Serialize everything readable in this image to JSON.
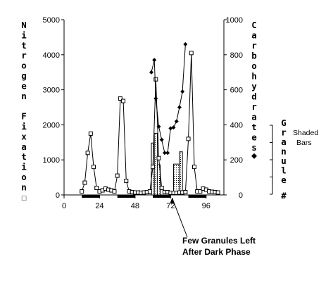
{
  "chart_data": {
    "type": "line",
    "left_axis": {
      "title": "Nitrogen Fixation",
      "marker_symbol": "□",
      "ylim": [
        0,
        5000
      ],
      "ticks": [
        "0",
        "1000",
        "2000",
        "3000",
        "4000",
        "5000"
      ]
    },
    "right_axis": {
      "title": "Carbohydrates",
      "marker_symbol": "◆",
      "ylim": [
        0,
        1000
      ],
      "ticks": [
        "0",
        "200",
        "400",
        "600",
        "800",
        "1000"
      ]
    },
    "x_axis": {
      "xlim": [
        0,
        108
      ],
      "ticks": [
        "0",
        "24",
        "48",
        "72",
        "96"
      ]
    },
    "granule_axis": {
      "title": "Granule #",
      "note": "Shaded Bars"
    },
    "annotation": {
      "line1": "Few Granules Left",
      "line2": "After Dark Phase",
      "x": 73
    },
    "series": [
      {
        "name": "Nitrogen Fixation",
        "axis": "left",
        "marker": "open-square",
        "points": [
          [
            12,
            100
          ],
          [
            14,
            350
          ],
          [
            16,
            1200
          ],
          [
            18,
            1750
          ],
          [
            20,
            800
          ],
          [
            22,
            200
          ],
          [
            24,
            100
          ],
          [
            26,
            130
          ],
          [
            28,
            180
          ],
          [
            30,
            150
          ],
          [
            32,
            130
          ],
          [
            34,
            100
          ],
          [
            36,
            550
          ],
          [
            38,
            2750
          ],
          [
            40,
            2680
          ],
          [
            42,
            400
          ],
          [
            44,
            100
          ],
          [
            46,
            80
          ],
          [
            48,
            70
          ],
          [
            50,
            70
          ],
          [
            52,
            60
          ],
          [
            54,
            70
          ],
          [
            56,
            80
          ],
          [
            58,
            100
          ],
          [
            60,
            800
          ],
          [
            62,
            3300
          ],
          [
            64,
            1050
          ],
          [
            66,
            200
          ],
          [
            68,
            80
          ],
          [
            70,
            80
          ],
          [
            72,
            60
          ],
          [
            74,
            60
          ],
          [
            76,
            60
          ],
          [
            78,
            70
          ],
          [
            80,
            70
          ],
          [
            82,
            80
          ],
          [
            84,
            1600
          ],
          [
            86,
            4050
          ],
          [
            88,
            800
          ],
          [
            90,
            100
          ],
          [
            92,
            100
          ],
          [
            94,
            180
          ],
          [
            96,
            150
          ],
          [
            98,
            100
          ],
          [
            100,
            90
          ],
          [
            102,
            80
          ],
          [
            104,
            70
          ]
        ]
      },
      {
        "name": "Carbohydrates",
        "axis": "right",
        "marker": "filled-diamond",
        "points": [
          [
            59,
            700
          ],
          [
            61,
            770
          ],
          [
            62,
            550
          ],
          [
            64,
            390
          ],
          [
            66,
            315
          ],
          [
            68,
            240
          ],
          [
            70,
            240
          ],
          [
            72,
            380
          ],
          [
            74,
            385
          ],
          [
            76,
            420
          ],
          [
            78,
            500
          ],
          [
            80,
            590
          ],
          [
            82,
            860
          ]
        ]
      }
    ],
    "granule_bars": [
      {
        "x0": 59,
        "x1": 61,
        "value": 1480
      },
      {
        "x0": 61,
        "x1": 63,
        "value": 1760
      },
      {
        "x0": 63,
        "x1": 65,
        "value": 860
      },
      {
        "x0": 74,
        "x1": 78,
        "value": 880
      },
      {
        "x0": 78,
        "x1": 80,
        "value": 1230
      }
    ],
    "dark_periods": [
      [
        12,
        24
      ],
      [
        36,
        48
      ],
      [
        60,
        72
      ],
      [
        84,
        96
      ]
    ]
  }
}
